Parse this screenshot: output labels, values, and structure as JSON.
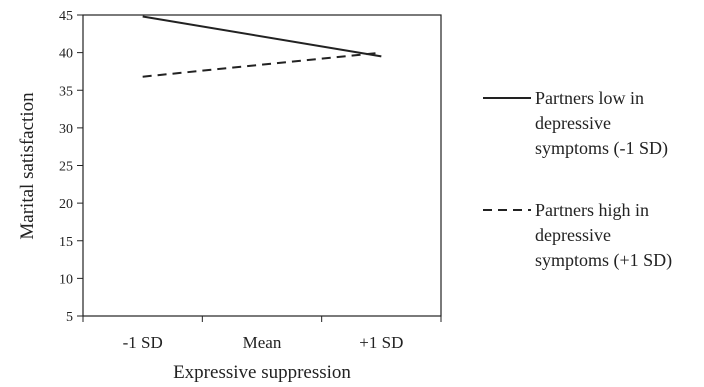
{
  "chart_data": {
    "type": "line",
    "categories": [
      "-1 SD",
      "Mean",
      "+1 SD"
    ],
    "series": [
      {
        "name": [
          "Partners low in",
          "depressive",
          "symptoms (-1 SD)"
        ],
        "x": [
          "-1 SD",
          "+1 SD"
        ],
        "values": [
          44.8,
          39.5
        ],
        "color": "#222222",
        "dash": "solid"
      },
      {
        "name": [
          "Partners high in",
          "depressive",
          "symptoms (+1 SD)"
        ],
        "x": [
          "-1 SD",
          "+1 SD"
        ],
        "values": [
          36.8,
          40.0
        ],
        "color": "#222222",
        "dash": "dashed"
      }
    ],
    "xlabel": "Expressive suppression",
    "ylabel": "Marital satisfaction",
    "ylim": [
      5,
      45
    ],
    "yticks": [
      5,
      10,
      15,
      20,
      25,
      30,
      35,
      40,
      45
    ],
    "grid": false,
    "legend": "right"
  }
}
